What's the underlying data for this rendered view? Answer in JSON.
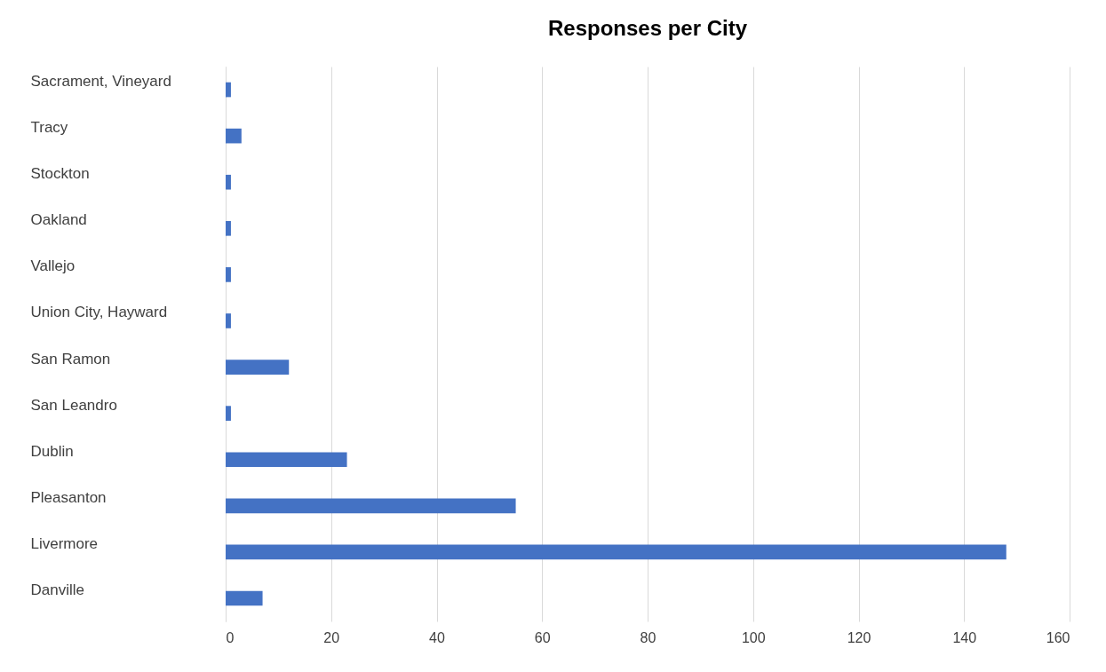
{
  "chart_data": {
    "type": "bar",
    "orientation": "horizontal",
    "title": "Responses per City",
    "categories": [
      "Sacrament, Vineyard",
      "Tracy",
      "Stockton",
      "Oakland",
      "Vallejo",
      "Union City, Hayward",
      "San Ramon",
      "San Leandro",
      "Dublin",
      "Pleasanton",
      "Livermore",
      "Danville"
    ],
    "values": [
      1,
      3,
      1,
      1,
      1,
      1,
      12,
      1,
      23,
      55,
      148,
      7
    ],
    "color": "#4472c4",
    "xlim": [
      0,
      160
    ],
    "xticks": [
      0,
      20,
      40,
      60,
      80,
      100,
      120,
      140,
      160
    ],
    "grid": "x"
  }
}
